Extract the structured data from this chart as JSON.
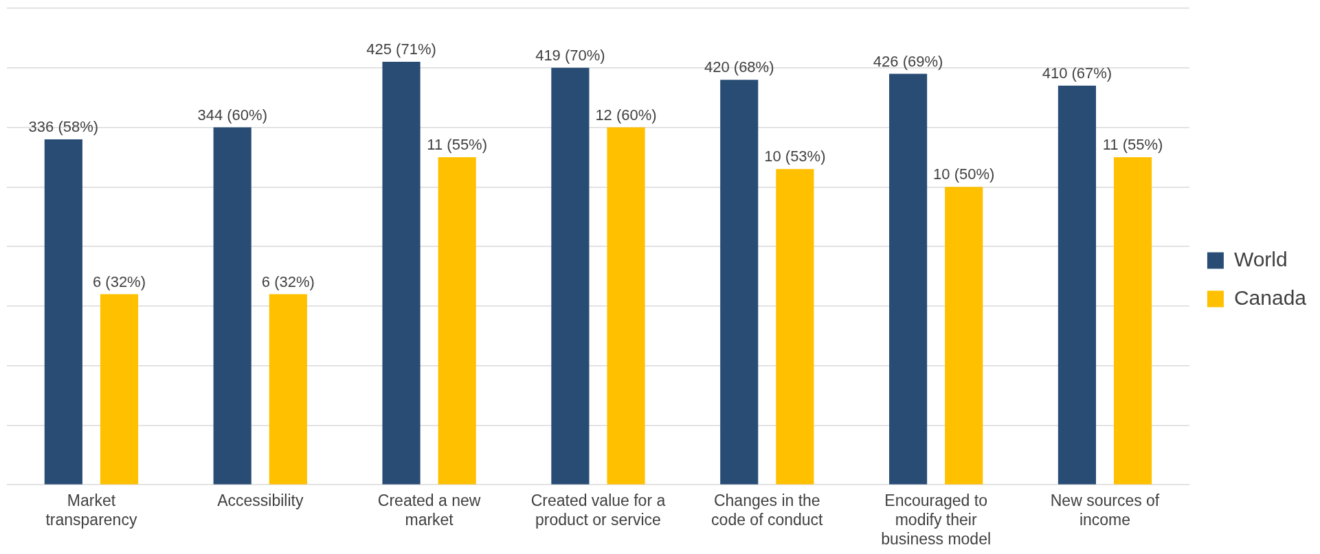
{
  "chart_data": {
    "type": "bar",
    "categories": [
      "Market transparency",
      "Accessibility",
      "Created a new market",
      "Created value for a product or service",
      "Changes in the code of conduct",
      "Encouraged to modify their business model",
      "New sources of income"
    ],
    "series": [
      {
        "name": "World",
        "color": "#294c75",
        "values": [
          58,
          60,
          71,
          70,
          68,
          69,
          67
        ],
        "value_labels": [
          "336 (58%)",
          "344 (60%)",
          "425 (71%)",
          "419 (70%)",
          "420 (68%)",
          "426 (69%)",
          "410 (67%)"
        ]
      },
      {
        "name": "Canada",
        "color": "#ffc000",
        "values": [
          32,
          32,
          55,
          60,
          53,
          50,
          55
        ],
        "value_labels": [
          "6 (32%)",
          "6 (32%)",
          "11 (55%)",
          "12 (60%)",
          "10 (53%)",
          "10 (50%)",
          "11 (55%)"
        ]
      }
    ],
    "grid": "y",
    "legend": "right",
    "tick_labels": "x"
  }
}
